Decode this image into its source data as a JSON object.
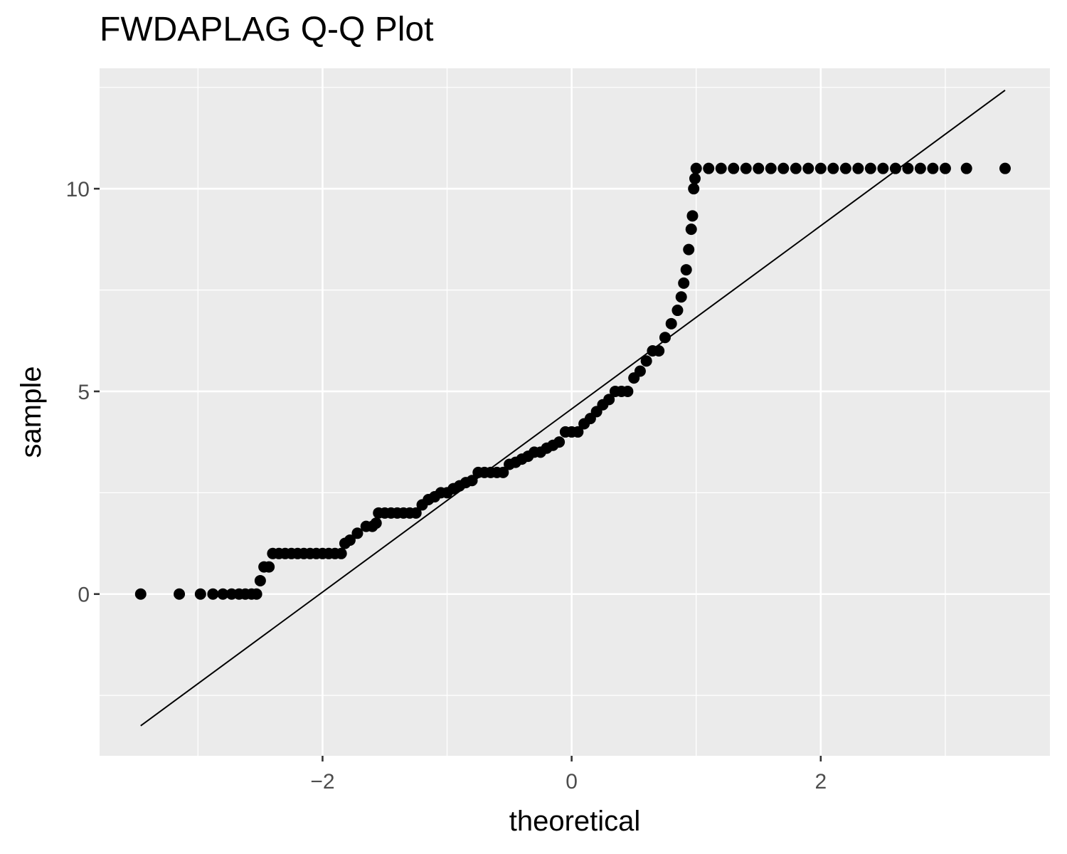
{
  "chart_data": {
    "type": "scatter",
    "title": "FWDAPLAG Q-Q Plot",
    "xlabel": "theoretical",
    "ylabel": "sample",
    "xlim": [
      -3.79,
      3.84
    ],
    "ylim": [
      -3.99,
      12.97
    ],
    "x_ticks": [
      -2,
      0,
      2
    ],
    "y_ticks": [
      0,
      5,
      10
    ],
    "grid": true,
    "background": "#ebebeb",
    "grid_color": "#ffffff",
    "point_color": "#000000",
    "reference_line": {
      "x": [
        -3.46,
        3.48
      ],
      "y": [
        -3.25,
        12.43
      ]
    },
    "series": [
      {
        "points": [
          [
            -3.46,
            0
          ],
          [
            -3.15,
            0
          ],
          [
            -2.98,
            0
          ],
          [
            -2.88,
            0
          ],
          [
            -2.8,
            0
          ],
          [
            -2.73,
            0
          ],
          [
            -2.67,
            0
          ],
          [
            -2.62,
            0
          ],
          [
            -2.57,
            0
          ],
          [
            -2.53,
            0
          ],
          [
            -2.5,
            0.33
          ],
          [
            -2.47,
            0.67
          ],
          [
            -2.43,
            0.67
          ],
          [
            -2.4,
            1
          ],
          [
            -2.35,
            1
          ],
          [
            -2.3,
            1
          ],
          [
            -2.25,
            1
          ],
          [
            -2.2,
            1
          ],
          [
            -2.15,
            1
          ],
          [
            -2.1,
            1
          ],
          [
            -2.05,
            1
          ],
          [
            -2.0,
            1
          ],
          [
            -1.95,
            1
          ],
          [
            -1.9,
            1
          ],
          [
            -1.85,
            1
          ],
          [
            -1.82,
            1.25
          ],
          [
            -1.78,
            1.33
          ],
          [
            -1.72,
            1.5
          ],
          [
            -1.65,
            1.67
          ],
          [
            -1.6,
            1.67
          ],
          [
            -1.57,
            1.75
          ],
          [
            -1.55,
            2
          ],
          [
            -1.5,
            2
          ],
          [
            -1.45,
            2
          ],
          [
            -1.4,
            2
          ],
          [
            -1.35,
            2
          ],
          [
            -1.3,
            2
          ],
          [
            -1.25,
            2
          ],
          [
            -1.2,
            2.2
          ],
          [
            -1.15,
            2.33
          ],
          [
            -1.1,
            2.4
          ],
          [
            -1.05,
            2.5
          ],
          [
            -1.0,
            2.5
          ],
          [
            -0.95,
            2.6
          ],
          [
            -0.9,
            2.67
          ],
          [
            -0.85,
            2.75
          ],
          [
            -0.8,
            2.8
          ],
          [
            -0.75,
            3
          ],
          [
            -0.7,
            3
          ],
          [
            -0.65,
            3
          ],
          [
            -0.6,
            3
          ],
          [
            -0.55,
            3
          ],
          [
            -0.5,
            3.2
          ],
          [
            -0.45,
            3.25
          ],
          [
            -0.4,
            3.33
          ],
          [
            -0.35,
            3.4
          ],
          [
            -0.3,
            3.5
          ],
          [
            -0.25,
            3.5
          ],
          [
            -0.2,
            3.6
          ],
          [
            -0.15,
            3.67
          ],
          [
            -0.1,
            3.75
          ],
          [
            -0.05,
            4
          ],
          [
            0.0,
            4
          ],
          [
            0.05,
            4
          ],
          [
            0.1,
            4.2
          ],
          [
            0.15,
            4.33
          ],
          [
            0.2,
            4.5
          ],
          [
            0.25,
            4.67
          ],
          [
            0.3,
            4.8
          ],
          [
            0.35,
            5
          ],
          [
            0.4,
            5
          ],
          [
            0.45,
            5
          ],
          [
            0.5,
            5.33
          ],
          [
            0.55,
            5.5
          ],
          [
            0.6,
            5.75
          ],
          [
            0.65,
            6
          ],
          [
            0.7,
            6
          ],
          [
            0.75,
            6.33
          ],
          [
            0.8,
            6.67
          ],
          [
            0.85,
            7
          ],
          [
            0.88,
            7.33
          ],
          [
            0.9,
            7.67
          ],
          [
            0.92,
            8
          ],
          [
            0.94,
            8.5
          ],
          [
            0.96,
            9
          ],
          [
            0.97,
            9.33
          ],
          [
            0.98,
            10
          ],
          [
            0.99,
            10.25
          ],
          [
            1.0,
            10.5
          ],
          [
            1.1,
            10.5
          ],
          [
            1.2,
            10.5
          ],
          [
            1.3,
            10.5
          ],
          [
            1.4,
            10.5
          ],
          [
            1.5,
            10.5
          ],
          [
            1.6,
            10.5
          ],
          [
            1.7,
            10.5
          ],
          [
            1.8,
            10.5
          ],
          [
            1.9,
            10.5
          ],
          [
            2.0,
            10.5
          ],
          [
            2.1,
            10.5
          ],
          [
            2.2,
            10.5
          ],
          [
            2.3,
            10.5
          ],
          [
            2.4,
            10.5
          ],
          [
            2.5,
            10.5
          ],
          [
            2.6,
            10.5
          ],
          [
            2.7,
            10.5
          ],
          [
            2.8,
            10.5
          ],
          [
            2.9,
            10.5
          ],
          [
            3.0,
            10.5
          ],
          [
            3.17,
            10.5
          ],
          [
            3.48,
            10.5
          ]
        ]
      }
    ]
  }
}
